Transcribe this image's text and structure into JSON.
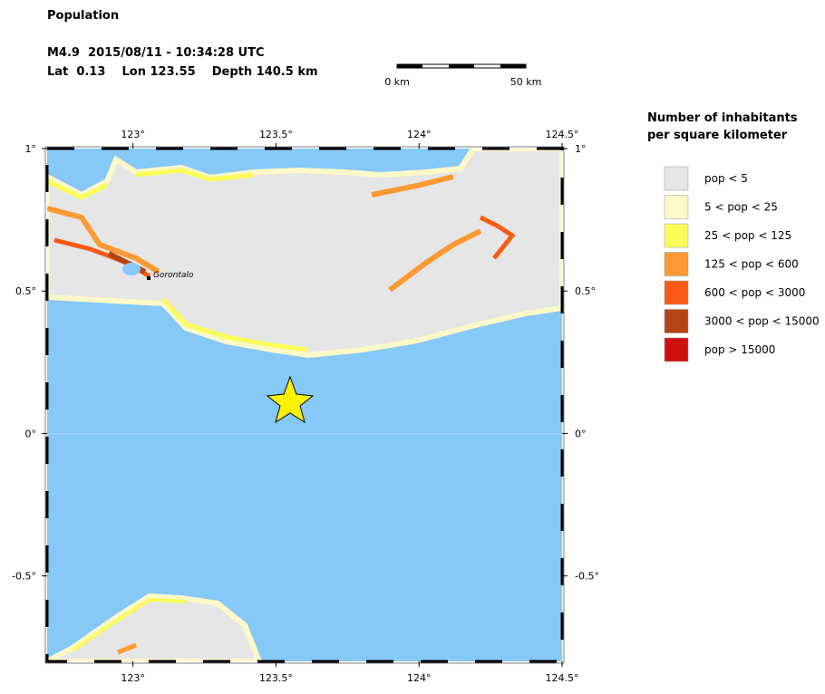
{
  "header": {
    "title": "Population",
    "event": "M4.9  2015/08/11 - 10:34:28 UTC",
    "location": "Lat  0.13    Lon 123.55    Depth 140.5 km"
  },
  "scale_bar": {
    "start": "0 km",
    "end": "50 km"
  },
  "map": {
    "xlim": [
      122.7,
      124.5
    ],
    "ylim": [
      -0.8,
      1.0
    ],
    "lon_ticks": [
      {
        "value": 123,
        "label": "123°"
      },
      {
        "value": 123.5,
        "label": "123.5°"
      },
      {
        "value": 124,
        "label": "124°"
      },
      {
        "value": 124.5,
        "label": "124.5°"
      }
    ],
    "lat_ticks": [
      {
        "value": 1,
        "label": "1°"
      },
      {
        "value": 0.5,
        "label": "0.5°"
      },
      {
        "value": 0,
        "label": "0°"
      },
      {
        "value": -0.5,
        "label": "-0.5°"
      }
    ],
    "city": "Gorontalo"
  },
  "legend": {
    "title_lines": [
      "Number of inhabitants",
      "per square kilometer"
    ],
    "items": [
      {
        "label": "pop < 5",
        "color": "#e6e6e6"
      },
      {
        "label": "5 < pop < 25",
        "color": "#fdf9c8"
      },
      {
        "label": "25 < pop < 125",
        "color": "#fcfc5a"
      },
      {
        "label": "125 < pop < 600",
        "color": "#fb9a33"
      },
      {
        "label": "600 < pop < 3000",
        "color": "#fa5a14"
      },
      {
        "label": "3000 < pop < 15000",
        "color": "#b44414"
      },
      {
        "label": "pop > 15000",
        "color": "#d00f0f"
      }
    ]
  }
}
